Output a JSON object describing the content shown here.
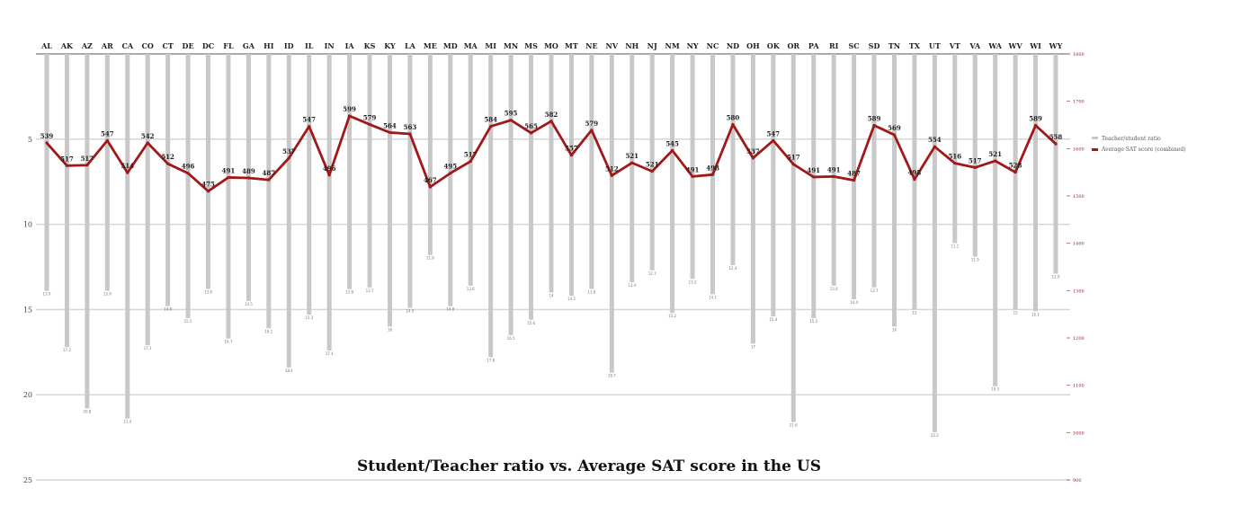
{
  "chart_data": {
    "type": "bar+line",
    "title": "Student/Teacher ratio vs. Average SAT score in the US",
    "legend": {
      "placement": "right",
      "entries": [
        "Teacher/student ratio",
        "Average SAT score (combined)"
      ]
    },
    "categories": [
      "AL",
      "AK",
      "AZ",
      "AR",
      "CA",
      "CO",
      "CT",
      "DE",
      "DC",
      "FL",
      "GA",
      "HI",
      "ID",
      "IL",
      "IN",
      "IA",
      "KS",
      "KY",
      "LA",
      "ME",
      "MD",
      "MA",
      "MI",
      "MN",
      "MS",
      "MO",
      "MT",
      "NE",
      "NV",
      "NH",
      "NJ",
      "NM",
      "NY",
      "NC",
      "ND",
      "OH",
      "OK",
      "OR",
      "PA",
      "RI",
      "SC",
      "SD",
      "TN",
      "TX",
      "UT",
      "VT",
      "VA",
      "WA",
      "WV",
      "WI",
      "WY"
    ],
    "ratio_axis": {
      "min": 0,
      "max": 25,
      "ticks": [
        5,
        10,
        15,
        20,
        25
      ]
    },
    "sat_axis": {
      "min": 900,
      "max": 1800,
      "ticks": [
        1800,
        1700,
        1600,
        1500,
        1400,
        1300,
        1200,
        1100,
        1000,
        900
      ]
    },
    "series": [
      {
        "name": "Teacher/student ratio",
        "kind": "bar",
        "color": "#c8c8c8",
        "values": [
          13.9,
          17.2,
          20.8,
          13.9,
          21.4,
          17.1,
          14.8,
          15.5,
          13.8,
          16.7,
          14.5,
          16.1,
          18.4,
          15.3,
          17.4,
          13.8,
          13.7,
          16.0,
          14.9,
          11.8,
          14.8,
          13.6,
          17.8,
          16.5,
          15.6,
          14.0,
          14.2,
          13.8,
          18.7,
          13.4,
          12.7,
          15.2,
          13.2,
          14.1,
          12.4,
          17.0,
          15.4,
          21.6,
          15.5,
          13.6,
          14.4,
          13.7,
          16.0,
          15.0,
          22.2,
          11.1,
          11.9,
          19.5,
          15.0,
          15.1,
          12.9
        ]
      },
      {
        "name": "Average SAT score (combined)",
        "kind": "line",
        "color": "#a01818",
        "values": [
          1612,
          1564,
          1565,
          1617,
          1549,
          1612,
          1568,
          1548,
          1510,
          1539,
          1538,
          1534,
          1580,
          1647,
          1544,
          1669,
          1651,
          1634,
          1631,
          1519,
          1548,
          1573,
          1647,
          1660,
          1633,
          1658,
          1586,
          1639,
          1543,
          1570,
          1552,
          1596,
          1541,
          1545,
          1651,
          1580,
          1617,
          1567,
          1540,
          1541,
          1533,
          1649,
          1629,
          1535,
          1604,
          1569,
          1560,
          1574,
          1550,
          1649,
          1610
        ]
      }
    ],
    "point_labels": [
      "539",
      "517",
      "517",
      "547",
      "514",
      "542",
      "512",
      "496",
      "475",
      "491",
      "489",
      "487",
      "537",
      "547",
      "496",
      "599",
      "579",
      "564",
      "563",
      "467",
      "495",
      "517",
      "584",
      "595",
      "565",
      "582",
      "557",
      "579",
      "512",
      "521",
      "521",
      "545",
      "491",
      "498",
      "580",
      "537",
      "547",
      "517",
      "491",
      "491",
      "487",
      "589",
      "569",
      "498",
      "554",
      "516",
      "517",
      "521",
      "528",
      "589",
      "558"
    ]
  }
}
